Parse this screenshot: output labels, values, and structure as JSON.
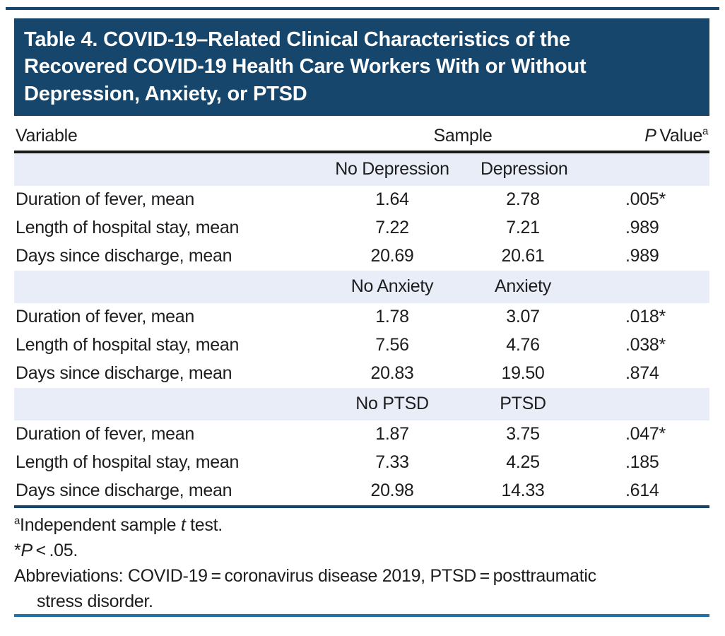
{
  "colors": {
    "navy_header": "#17466d",
    "band_blue": "#e8edf8",
    "rule_black": "#1a1a1a",
    "rule_teal": "#2272a2",
    "text": "#1d1d1d"
  },
  "title": {
    "line1": "Table 4. COVID-19–Related Clinical Characteristics of the",
    "line2": "Recovered COVID-19 Health Care Workers With or Without",
    "line3": "Depression, Anxiety, or PTSD"
  },
  "header": {
    "variable": "Variable",
    "sample": "Sample",
    "p_italic": "P",
    "value_word": " Value",
    "sup": "a"
  },
  "sections": [
    {
      "group_headers": [
        "No Depression",
        "Depression"
      ],
      "rows": [
        {
          "label": "Duration of fever, mean",
          "v1": "1.64",
          "v2": "2.78",
          "p": ".005*"
        },
        {
          "label": "Length of hospital stay, mean",
          "v1": "7.22",
          "v2": "7.21",
          "p": ".989"
        },
        {
          "label": "Days since discharge, mean",
          "v1": "20.69",
          "v2": "20.61",
          "p": ".989"
        }
      ]
    },
    {
      "group_headers": [
        "No Anxiety",
        "Anxiety"
      ],
      "rows": [
        {
          "label": "Duration of fever, mean",
          "v1": "1.78",
          "v2": "3.07",
          "p": ".018*"
        },
        {
          "label": "Length of hospital stay, mean",
          "v1": "7.56",
          "v2": "4.76",
          "p": ".038*"
        },
        {
          "label": "Days since discharge, mean",
          "v1": "20.83",
          "v2": "19.50",
          "p": ".874"
        }
      ]
    },
    {
      "group_headers": [
        "No PTSD",
        "PTSD"
      ],
      "rows": [
        {
          "label": "Duration of fever, mean",
          "v1": "1.87",
          "v2": "3.75",
          "p": ".047*"
        },
        {
          "label": "Length of hospital stay, mean",
          "v1": "7.33",
          "v2": "4.25",
          "p": ".185"
        },
        {
          "label": "Days since discharge, mean",
          "v1": "20.98",
          "v2": "14.33",
          "p": ".614"
        }
      ]
    }
  ],
  "footnotes": {
    "fn1_sup": "a",
    "fn1_pre": "Independent sample ",
    "fn1_it": "t",
    "fn1_post": " test.",
    "fn2_star": "*",
    "fn2_it": "P",
    "fn2_post": " < .05.",
    "fn3_line1": "Abbreviations: COVID-19 = coronavirus disease 2019, PTSD = posttraumatic",
    "fn3_line2": "stress disorder."
  }
}
